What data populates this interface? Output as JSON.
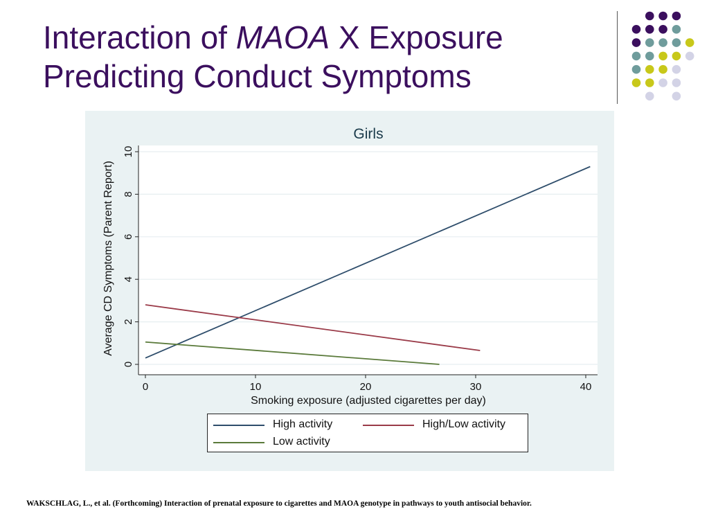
{
  "slide": {
    "title_line1_pre": "Interaction of ",
    "title_line1_italic": "MAOA",
    "title_line1_post": " X Exposure",
    "title_line2": "Predicting Conduct Symptoms",
    "citation": "WAKSCHLAG, L., et al. (Forthcoming) Interaction of prenatal exposure to cigarettes and MAOA genotype in pathways to youth antisocial behavior."
  },
  "colors": {
    "title": "#3b0f5e",
    "dot_purple": "#3b0f5e",
    "dot_teal": "#6f9c9c",
    "dot_yellow": "#c8c81a",
    "dot_lavender": "#d3d3e6",
    "panel_bg": "#eaf2f3"
  },
  "chart_data": {
    "type": "line",
    "title": "Girls",
    "xlabel": "Smoking exposure (adjusted cigarettes per day)",
    "ylabel": "Average CD Symptoms (Parent Report)",
    "xlim": [
      0,
      40
    ],
    "ylim": [
      0,
      10
    ],
    "xticks": [
      0,
      10,
      20,
      30,
      40
    ],
    "yticks": [
      0,
      2,
      4,
      6,
      8,
      10
    ],
    "grid": true,
    "legend_position": "bottom",
    "series": [
      {
        "name": "High activity",
        "color": "#2e4d6b",
        "x": [
          0,
          40.4
        ],
        "y": [
          0.3,
          9.3
        ]
      },
      {
        "name": "High/Low activity",
        "color": "#9a3a48",
        "x": [
          0,
          30.4
        ],
        "y": [
          2.8,
          0.65
        ]
      },
      {
        "name": "Low activity",
        "color": "#5a7a3a",
        "x": [
          0,
          26.7
        ],
        "y": [
          1.05,
          0.0
        ]
      }
    ]
  }
}
